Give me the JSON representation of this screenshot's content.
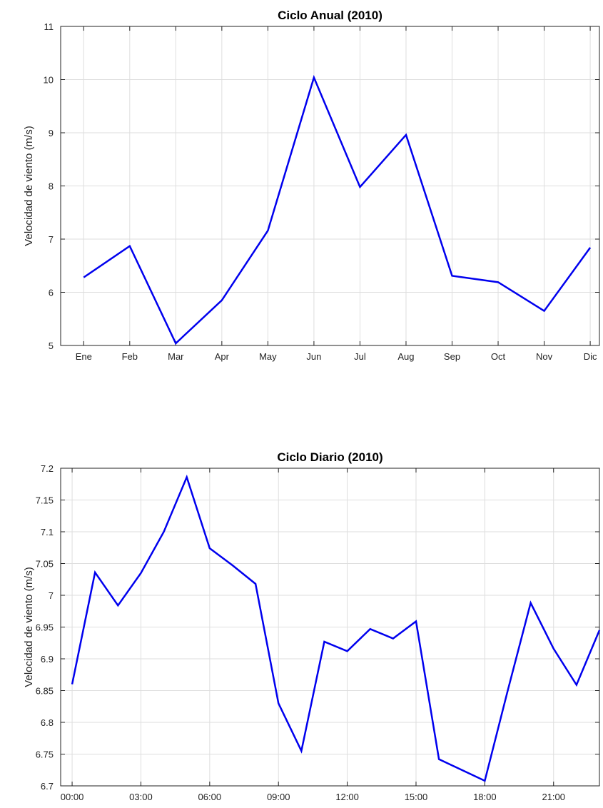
{
  "chart_data": [
    {
      "type": "line",
      "title": "Ciclo Anual (2010)",
      "y_label": "Velocidad de viento (m/s)",
      "categories": [
        "Ene",
        "Feb",
        "Mar",
        "Apr",
        "May",
        "Jun",
        "Jul",
        "Aug",
        "Sep",
        "Oct",
        "Nov",
        "Dic"
      ],
      "series": [
        {
          "color": "#0000ee",
          "values": [
            6.28,
            6.87,
            5.04,
            5.85,
            7.16,
            10.04,
            7.98,
            8.96,
            6.31,
            6.19,
            5.65,
            6.84
          ]
        }
      ],
      "ylim": [
        5,
        11
      ],
      "yticks": [
        5,
        6,
        7,
        8,
        9,
        10,
        11
      ],
      "grid": true
    },
    {
      "type": "line",
      "title": "Ciclo Diario (2010)",
      "y_label": "Velocidad de viento (m/s)",
      "x": [
        0,
        1,
        2,
        3,
        4,
        5,
        6,
        7,
        8,
        9,
        10,
        11,
        12,
        13,
        14,
        15,
        16,
        17,
        18,
        19,
        20,
        21,
        22,
        23
      ],
      "series": [
        {
          "color": "#0000ee",
          "values": [
            6.86,
            7.036,
            6.984,
            7.035,
            7.1,
            7.186,
            7.074,
            7.047,
            7.018,
            6.83,
            6.755,
            6.927,
            6.912,
            6.947,
            6.932,
            6.959,
            6.742,
            6.725,
            6.708,
            6.85,
            6.988,
            6.916,
            6.859,
            6.945
          ]
        }
      ],
      "xlim": [
        -0.5,
        23
      ],
      "xticks": [
        {
          "value": 0,
          "label": "00:00"
        },
        {
          "value": 3,
          "label": "03:00"
        },
        {
          "value": 6,
          "label": "06:00"
        },
        {
          "value": 9,
          "label": "09:00"
        },
        {
          "value": 12,
          "label": "12:00"
        },
        {
          "value": 15,
          "label": "15:00"
        },
        {
          "value": 18,
          "label": "18:00"
        },
        {
          "value": 21,
          "label": "21:00"
        }
      ],
      "ylim": [
        6.7,
        7.2
      ],
      "yticks": [
        6.7,
        6.75,
        6.8,
        6.85,
        6.9,
        6.95,
        7,
        7.05,
        7.1,
        7.15,
        7.2
      ],
      "grid": true
    }
  ]
}
